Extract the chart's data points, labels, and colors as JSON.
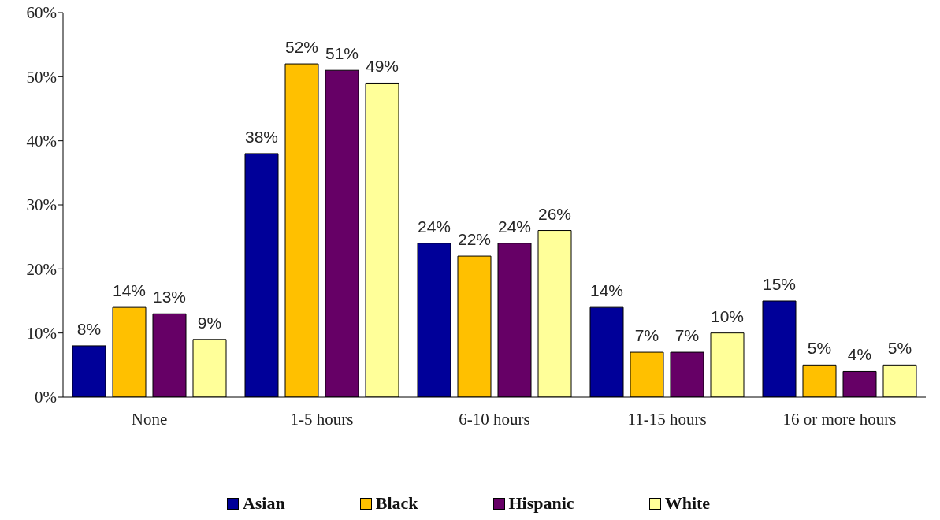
{
  "chart_data": {
    "type": "bar",
    "categories": [
      "None",
      "1-5 hours",
      "6-10 hours",
      "11-15 hours",
      "16 or more hours"
    ],
    "series": [
      {
        "name": "Asian",
        "color": "#000099",
        "values": [
          8,
          38,
          24,
          14,
          15
        ],
        "value_labels": [
          "8%",
          "38%",
          "24%",
          "14%",
          "15%"
        ]
      },
      {
        "name": "Black",
        "color": "#ffc000",
        "values": [
          14,
          52,
          22,
          7,
          5
        ],
        "value_labels": [
          "14%",
          "52%",
          "22%",
          "7%",
          "5%"
        ]
      },
      {
        "name": "Hispanic",
        "color": "#660066",
        "values": [
          13,
          51,
          24,
          7,
          4
        ],
        "value_labels": [
          "13%",
          "51%",
          "24%",
          "7%",
          "4%"
        ]
      },
      {
        "name": "White",
        "color": "#ffff99",
        "values": [
          9,
          49,
          26,
          10,
          5
        ],
        "value_labels": [
          "9%",
          "49%",
          "26%",
          "10%",
          "5%"
        ]
      }
    ],
    "ylim": [
      0,
      60
    ],
    "yticks": [
      {
        "value": 0,
        "label": "0%"
      },
      {
        "value": 10,
        "label": "10%"
      },
      {
        "value": 20,
        "label": "20%"
      },
      {
        "value": 30,
        "label": "30%"
      },
      {
        "value": 40,
        "label": "40%"
      },
      {
        "value": 50,
        "label": "50%"
      },
      {
        "value": 60,
        "label": "60%"
      }
    ],
    "grid": false,
    "legend": "bottom"
  }
}
